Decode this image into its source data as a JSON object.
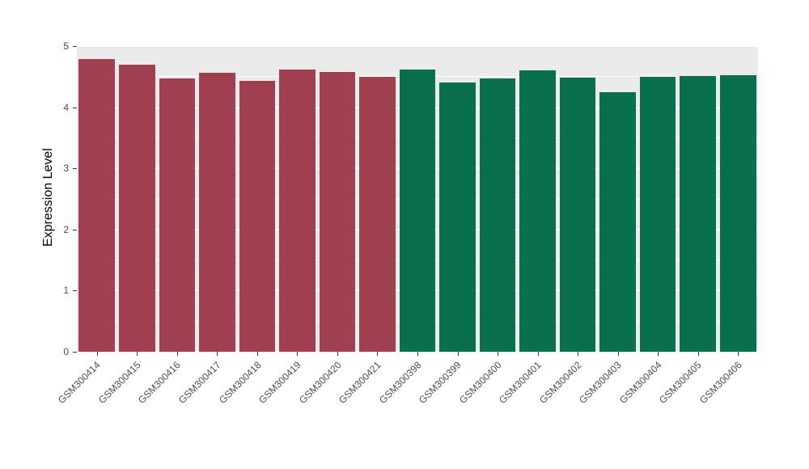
{
  "chart_data": {
    "type": "bar",
    "title": "",
    "xlabel": "",
    "ylabel": "Expression Level",
    "ylim": [
      0,
      5
    ],
    "yticks": [
      0,
      1,
      2,
      3,
      4,
      5
    ],
    "grid": "on",
    "legend": "none",
    "categories": [
      "GSM300414",
      "GSM300415",
      "GSM300416",
      "GSM300417",
      "GSM300418",
      "GSM300419",
      "GSM300420",
      "GSM300421",
      "GSM300398",
      "GSM300399",
      "GSM300400",
      "GSM300401",
      "GSM300402",
      "GSM300403",
      "GSM300404",
      "GSM300405",
      "GSM300406"
    ],
    "values": [
      4.79,
      4.7,
      4.47,
      4.57,
      4.43,
      4.61,
      4.58,
      4.5,
      4.61,
      4.41,
      4.47,
      4.6,
      4.48,
      4.24,
      4.5,
      4.51,
      4.53
    ],
    "bar_colors": [
      "#A04050",
      "#A04050",
      "#A04050",
      "#A04050",
      "#A04050",
      "#A04050",
      "#A04050",
      "#A04050",
      "#096F4D",
      "#096F4D",
      "#096F4D",
      "#096F4D",
      "#096F4D",
      "#096F4D",
      "#096F4D",
      "#096F4D",
      "#096F4D"
    ],
    "colors": {
      "group_red": "#A04050",
      "group_green": "#096F4D",
      "panel_background": "#EBEBEB",
      "gridline_major": "#FFFFFF",
      "gridline_minor": "#FFFFFF",
      "axis_text": "#4D4D4D",
      "axis_title": "#000000",
      "tick_mark": "#333333",
      "page_background": "#FFFFFF"
    }
  }
}
